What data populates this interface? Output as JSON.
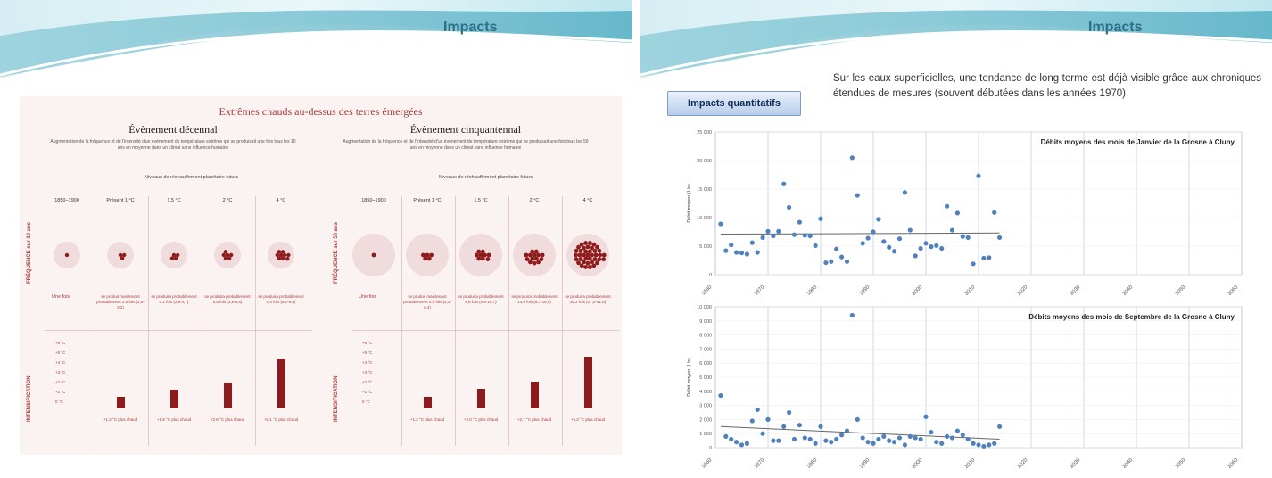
{
  "left_slide": {
    "banner_title": "Impacts",
    "figure": {
      "title": "Extrêmes chauds au-dessus des terres émergées",
      "events": [
        {
          "title": "Évènement décennal",
          "description": "Augmentation de la fréquence et de l'intensité d'un événement de température extrême qui se produisait une fois tous les 10 ans en moyenne dans un climat sans influence humaine",
          "niveaux_label": "Niveaux de réchauffement planétaire futurs",
          "axis_top": "FRÉQUENCE sur 10 ans",
          "axis_bottom": "INTENSIFICATION",
          "columns": [
            {
              "head": "1850–1900",
              "freq": "Une fois",
              "bar": null
            },
            {
              "head": "Présent 1 °C",
              "freq": "se produit maintenant probablement 2,8 fois (1,8-3,2)",
              "bar_value": 1.2,
              "bar_label": "+1,2 °C plus chaud"
            },
            {
              "head": "1,5 °C",
              "freq": "se produira probablement 4,1 fois (2,8-4,7)",
              "bar_value": 1.9,
              "bar_label": "+1,9 °C plus chaud"
            },
            {
              "head": "2 °C",
              "freq": "se produira probablement 5,6 fois (3,9-6,8)",
              "bar_value": 2.6,
              "bar_label": "+2,6 °C plus chaud"
            },
            {
              "head": "4 °C",
              "freq": "se produira probablement 9,4 fois (8,1-9,6)",
              "bar_value": 5.1,
              "bar_label": "+5,1 °C plus chaud"
            }
          ]
        },
        {
          "title": "Évènement cinquantennal",
          "description": "Augmentation de la fréquence et de l'intensité d'un événement de température extrême qui se produisait une fois tous les 50 ans en moyenne dans un climat sans influence humaine",
          "niveaux_label": "Niveaux de réchauffement planétaire futurs",
          "axis_top": "FRÉQUENCE sur 50 ans",
          "axis_bottom": "INTENSIFICATION",
          "columns": [
            {
              "head": "1850–1900",
              "freq": "Une fois",
              "bar": null
            },
            {
              "head": "Présent 1 °C",
              "freq": "se produit maintenant probablement 4,8 fois (2,3-6,4)",
              "bar_value": 1.2,
              "bar_label": "+1,2 °C plus chaud"
            },
            {
              "head": "1,5 °C",
              "freq": "se produira probablement 8,6 fois (4,5-10,7)",
              "bar_value": 2.0,
              "bar_label": "+2,0 °C plus chaud"
            },
            {
              "head": "2 °C",
              "freq": "se produira probablement 13,9 fois (6,7-16,9)",
              "bar_value": 2.7,
              "bar_label": "+2,7 °C plus chaud"
            },
            {
              "head": "4 °C",
              "freq": "se produira probablement 39,2 fois (27,0-41,8)",
              "bar_value": 5.3,
              "bar_label": "+5,3 °C plus chaud"
            }
          ]
        }
      ],
      "scale_ticks": [
        "+6 °C",
        "+5 °C",
        "+4 °C",
        "+3 °C",
        "+2 °C",
        "+1 °C",
        "0 °C"
      ]
    }
  },
  "right_slide": {
    "banner_title": "Impacts",
    "button_label": "Impacts quantitatifs",
    "intro_text": "Sur les eaux superficielles, une tendance de long terme est déjà visible grâce aux chroniques étendues de mesures (souvent débutées dans les années 1970).",
    "chart_data": [
      {
        "type": "scatter",
        "title": "Débits moyens des mois de Janvier de la Grosne à Cluny",
        "ylabel": "Débit moyen (L/s)",
        "xlim": [
          1960,
          2060
        ],
        "ylim": [
          0,
          25000
        ],
        "yticks": [
          "0",
          "5 000",
          "10 000",
          "15 000",
          "20 000",
          "25 000"
        ],
        "xticks": [
          "1960",
          "1970",
          "1980",
          "1990",
          "2000",
          "2010",
          "2020",
          "2030",
          "2040",
          "2050",
          "2060"
        ],
        "x": [
          1961,
          1962,
          1963,
          1964,
          1965,
          1966,
          1967,
          1968,
          1969,
          1970,
          1971,
          1972,
          1973,
          1974,
          1975,
          1976,
          1977,
          1978,
          1979,
          1980,
          1981,
          1982,
          1983,
          1984,
          1985,
          1986,
          1987,
          1988,
          1989,
          1990,
          1991,
          1992,
          1993,
          1994,
          1995,
          1996,
          1997,
          1998,
          1999,
          2000,
          2001,
          2002,
          2003,
          2004,
          2005,
          2006,
          2007,
          2008,
          2009,
          2010,
          2011,
          2012,
          2013,
          2014
        ],
        "y": [
          8900,
          4200,
          5200,
          3900,
          3800,
          3600,
          5600,
          3900,
          6500,
          7600,
          6800,
          7600,
          15900,
          11800,
          7000,
          9200,
          6900,
          6800,
          5100,
          9800,
          2100,
          2300,
          4500,
          3100,
          2300,
          20500,
          13900,
          5500,
          6400,
          7500,
          9700,
          5800,
          4800,
          4100,
          6300,
          14400,
          7800,
          3300,
          4600,
          5500,
          4900,
          5100,
          4600,
          12000,
          7800,
          10800,
          6700,
          6500,
          1900,
          17300,
          2900,
          3000,
          10900,
          6500
        ],
        "trend": [
          [
            1961,
            7100
          ],
          [
            2014,
            7300
          ]
        ]
      },
      {
        "type": "scatter",
        "title": "Débits moyens des mois de Septembre de la Grosne à Cluny",
        "ylabel": "Débit moyen (L/s)",
        "xlim": [
          1960,
          2060
        ],
        "ylim": [
          0,
          10000
        ],
        "yticks": [
          "0",
          "1 000",
          "2 000",
          "3 000",
          "4 000",
          "5 000",
          "6 000",
          "7 000",
          "8 000",
          "9 000",
          "10 000"
        ],
        "xticks": [
          "1960",
          "1970",
          "1980",
          "1990",
          "2000",
          "2010",
          "2020",
          "2030",
          "2040",
          "2050",
          "2060"
        ],
        "x": [
          1961,
          1962,
          1963,
          1964,
          1965,
          1966,
          1967,
          1968,
          1969,
          1970,
          1971,
          1972,
          1973,
          1974,
          1975,
          1976,
          1977,
          1978,
          1979,
          1980,
          1981,
          1982,
          1983,
          1984,
          1985,
          1986,
          1987,
          1988,
          1989,
          1990,
          1991,
          1992,
          1993,
          1994,
          1995,
          1996,
          1997,
          1998,
          1999,
          2000,
          2001,
          2002,
          2003,
          2004,
          2005,
          2006,
          2007,
          2008,
          2009,
          2010,
          2011,
          2012,
          2013,
          2014
        ],
        "y": [
          3700,
          800,
          600,
          400,
          200,
          300,
          1900,
          2700,
          1000,
          2000,
          500,
          500,
          1500,
          2500,
          600,
          1600,
          700,
          600,
          300,
          1500,
          500,
          400,
          600,
          900,
          1200,
          9400,
          2000,
          700,
          400,
          300,
          600,
          800,
          500,
          400,
          700,
          200,
          800,
          700,
          600,
          2200,
          1100,
          400,
          300,
          800,
          700,
          1200,
          900,
          600,
          300,
          200,
          100,
          200,
          300,
          1500
        ],
        "trend": [
          [
            1961,
            1500
          ],
          [
            2014,
            600
          ]
        ]
      }
    ]
  }
}
